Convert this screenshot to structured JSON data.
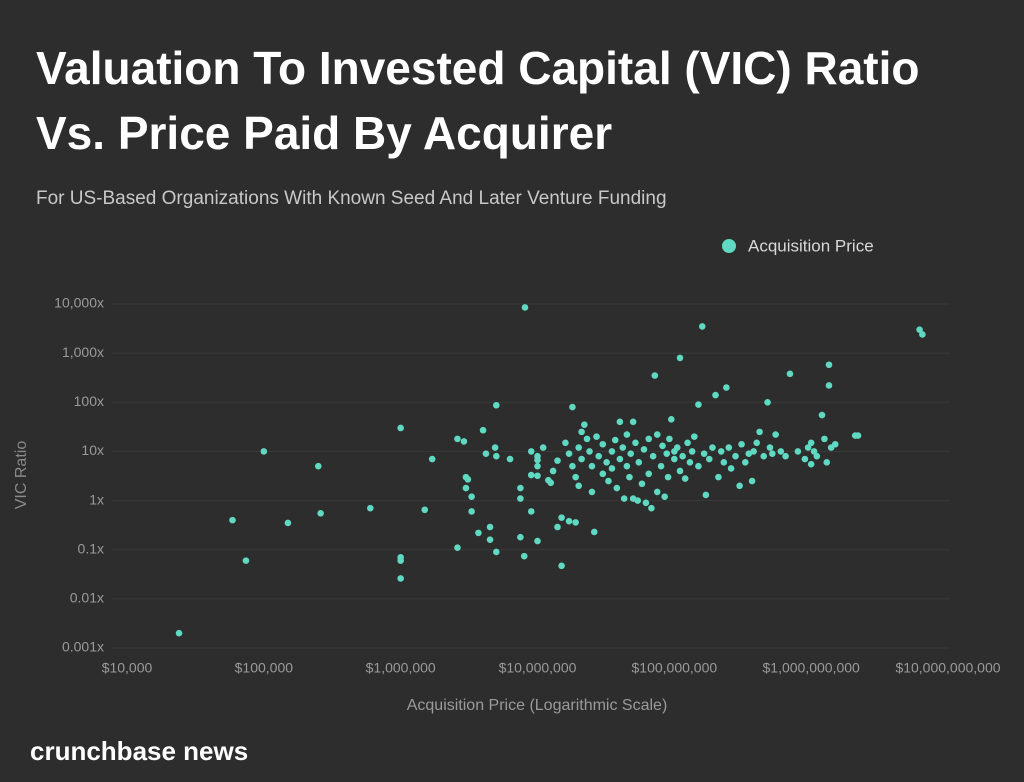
{
  "chart_data": {
    "type": "scatter",
    "title_lines": [
      "Valuation To Invested Capital (VIC) Ratio",
      "Vs. Price Paid By Acquirer"
    ],
    "subtitle": "For US-Based Organizations With Known Seed And Later Venture Funding",
    "xlabel": "Acquisition Price (Logarithmic Scale)",
    "ylabel": "VIC Ratio",
    "footer": "crunchbase news",
    "xscale": "log",
    "yscale": "log",
    "grid": true,
    "legend": "top-right",
    "xlim": [
      10000,
      10000000000
    ],
    "ylim": [
      0.001,
      10000
    ],
    "xticks": [
      {
        "value": 10000,
        "label": "$10,000"
      },
      {
        "value": 100000,
        "label": "$100,000"
      },
      {
        "value": 1000000,
        "label": "$1,000,000"
      },
      {
        "value": 10000000,
        "label": "$10,000,000"
      },
      {
        "value": 100000000,
        "label": "$100,000,000"
      },
      {
        "value": 1000000000,
        "label": "$1,000,000,000"
      },
      {
        "value": 10000000000,
        "label": "$10,000,000,000"
      }
    ],
    "yticks": [
      {
        "value": 0.001,
        "label": "0.001x"
      },
      {
        "value": 0.01,
        "label": "0.01x"
      },
      {
        "value": 0.1,
        "label": "0.1x"
      },
      {
        "value": 1,
        "label": "1x"
      },
      {
        "value": 10,
        "label": "10x"
      },
      {
        "value": 100,
        "label": "100x"
      },
      {
        "value": 1000,
        "label": "1,000x"
      },
      {
        "value": 10000,
        "label": "10,000x"
      }
    ],
    "x": [
      24000,
      59000,
      74000,
      100000,
      150000,
      250000,
      260000,
      600000,
      1000000,
      1000000,
      1000000,
      1000000,
      1500000,
      1700000,
      2600000,
      2600000,
      2900000,
      3000000,
      3100000,
      3000000,
      3300000,
      3300000,
      3700000,
      4000000,
      4200000,
      4500000,
      4500000,
      4900000,
      5000000,
      5000000,
      5000000,
      6300000,
      7500000,
      7500000,
      7500000,
      8000000,
      8100000,
      9000000,
      9000000,
      9000000,
      10000000,
      10000000,
      10000000,
      10000000,
      10000000,
      11000000,
      12000000,
      13000000,
      14000000,
      12500000,
      14000000,
      15000000,
      17000000,
      19000000,
      15000000,
      18000000,
      16000000,
      17000000,
      18000000,
      19000000,
      20000000,
      20000000,
      21000000,
      21000000,
      22000000,
      23000000,
      24000000,
      25000000,
      25000000,
      26000000,
      27000000,
      28000000,
      30000000,
      30000000,
      32000000,
      33000000,
      35000000,
      35000000,
      37000000,
      38000000,
      40000000,
      40000000,
      42000000,
      43000000,
      45000000,
      45000000,
      47000000,
      48000000,
      50000000,
      50000000,
      52000000,
      54000000,
      55000000,
      58000000,
      60000000,
      62000000,
      65000000,
      65000000,
      68000000,
      70000000,
      72000000,
      75000000,
      75000000,
      80000000,
      82000000,
      85000000,
      88000000,
      90000000,
      92000000,
      95000000,
      100000000,
      100000000,
      105000000,
      110000000,
      110000000,
      115000000,
      120000000,
      125000000,
      130000000,
      135000000,
      140000000,
      150000000,
      150000000,
      160000000,
      165000000,
      170000000,
      180000000,
      190000000,
      200000000,
      210000000,
      220000000,
      230000000,
      240000000,
      250000000,
      260000000,
      280000000,
      300000000,
      310000000,
      330000000,
      350000000,
      370000000,
      380000000,
      400000000,
      420000000,
      450000000,
      480000000,
      500000000,
      520000000,
      550000000,
      600000000,
      650000000,
      700000000,
      800000000,
      900000000,
      950000000,
      1000000000,
      1000000000,
      1050000000,
      1100000000,
      1200000000,
      1250000000,
      1300000000,
      1350000000,
      1350000000,
      1400000000,
      1500000000,
      2100000000,
      2200000000,
      6200000000,
      6500000000
    ],
    "series": [
      {
        "name": "Acquisition Price",
        "color": "#5fd9c1",
        "values": [
          0.002,
          0.4,
          0.06,
          10,
          0.35,
          5,
          0.55,
          0.7,
          30,
          0.07,
          0.06,
          0.026,
          0.65,
          7,
          0.11,
          18,
          16,
          3,
          2.7,
          1.8,
          1.2,
          0.6,
          0.22,
          27,
          9,
          0.29,
          0.16,
          12,
          8,
          0.09,
          87,
          7,
          1.8,
          1.1,
          0.18,
          0.074,
          8500,
          0.6,
          10,
          3.3,
          6.7,
          5,
          8,
          3.2,
          0.15,
          12,
          2.6,
          4,
          6.5,
          2.3,
          0.29,
          0.45,
          0.38,
          0.36,
          0.047,
          80,
          15,
          9,
          5,
          3,
          2,
          12,
          7,
          25,
          35,
          18,
          10,
          5,
          1.5,
          0.23,
          20,
          8,
          14,
          3.5,
          6,
          2.5,
          10,
          4.5,
          17,
          1.8,
          7,
          40,
          12,
          1.1,
          5,
          22,
          3,
          9,
          1.1,
          40,
          15,
          1,
          6,
          2.2,
          11,
          0.9,
          3.5,
          18,
          0.7,
          8,
          350,
          1.5,
          22,
          5,
          13,
          1.2,
          9,
          3,
          18,
          45,
          7,
          10,
          12,
          4,
          800,
          8,
          2.8,
          15,
          6,
          10,
          20,
          5,
          90,
          3500,
          9,
          1.3,
          7,
          12,
          140,
          3,
          10,
          6,
          200,
          12,
          4.5,
          8,
          2,
          14,
          6,
          9,
          2.5,
          10,
          15,
          25,
          8,
          100,
          12,
          9,
          22,
          10,
          8,
          380,
          10,
          7,
          12,
          5.5,
          15,
          10,
          8,
          55,
          18,
          6,
          580,
          220,
          12,
          14,
          21,
          21,
          3000,
          2400
        ]
      }
    ]
  }
}
